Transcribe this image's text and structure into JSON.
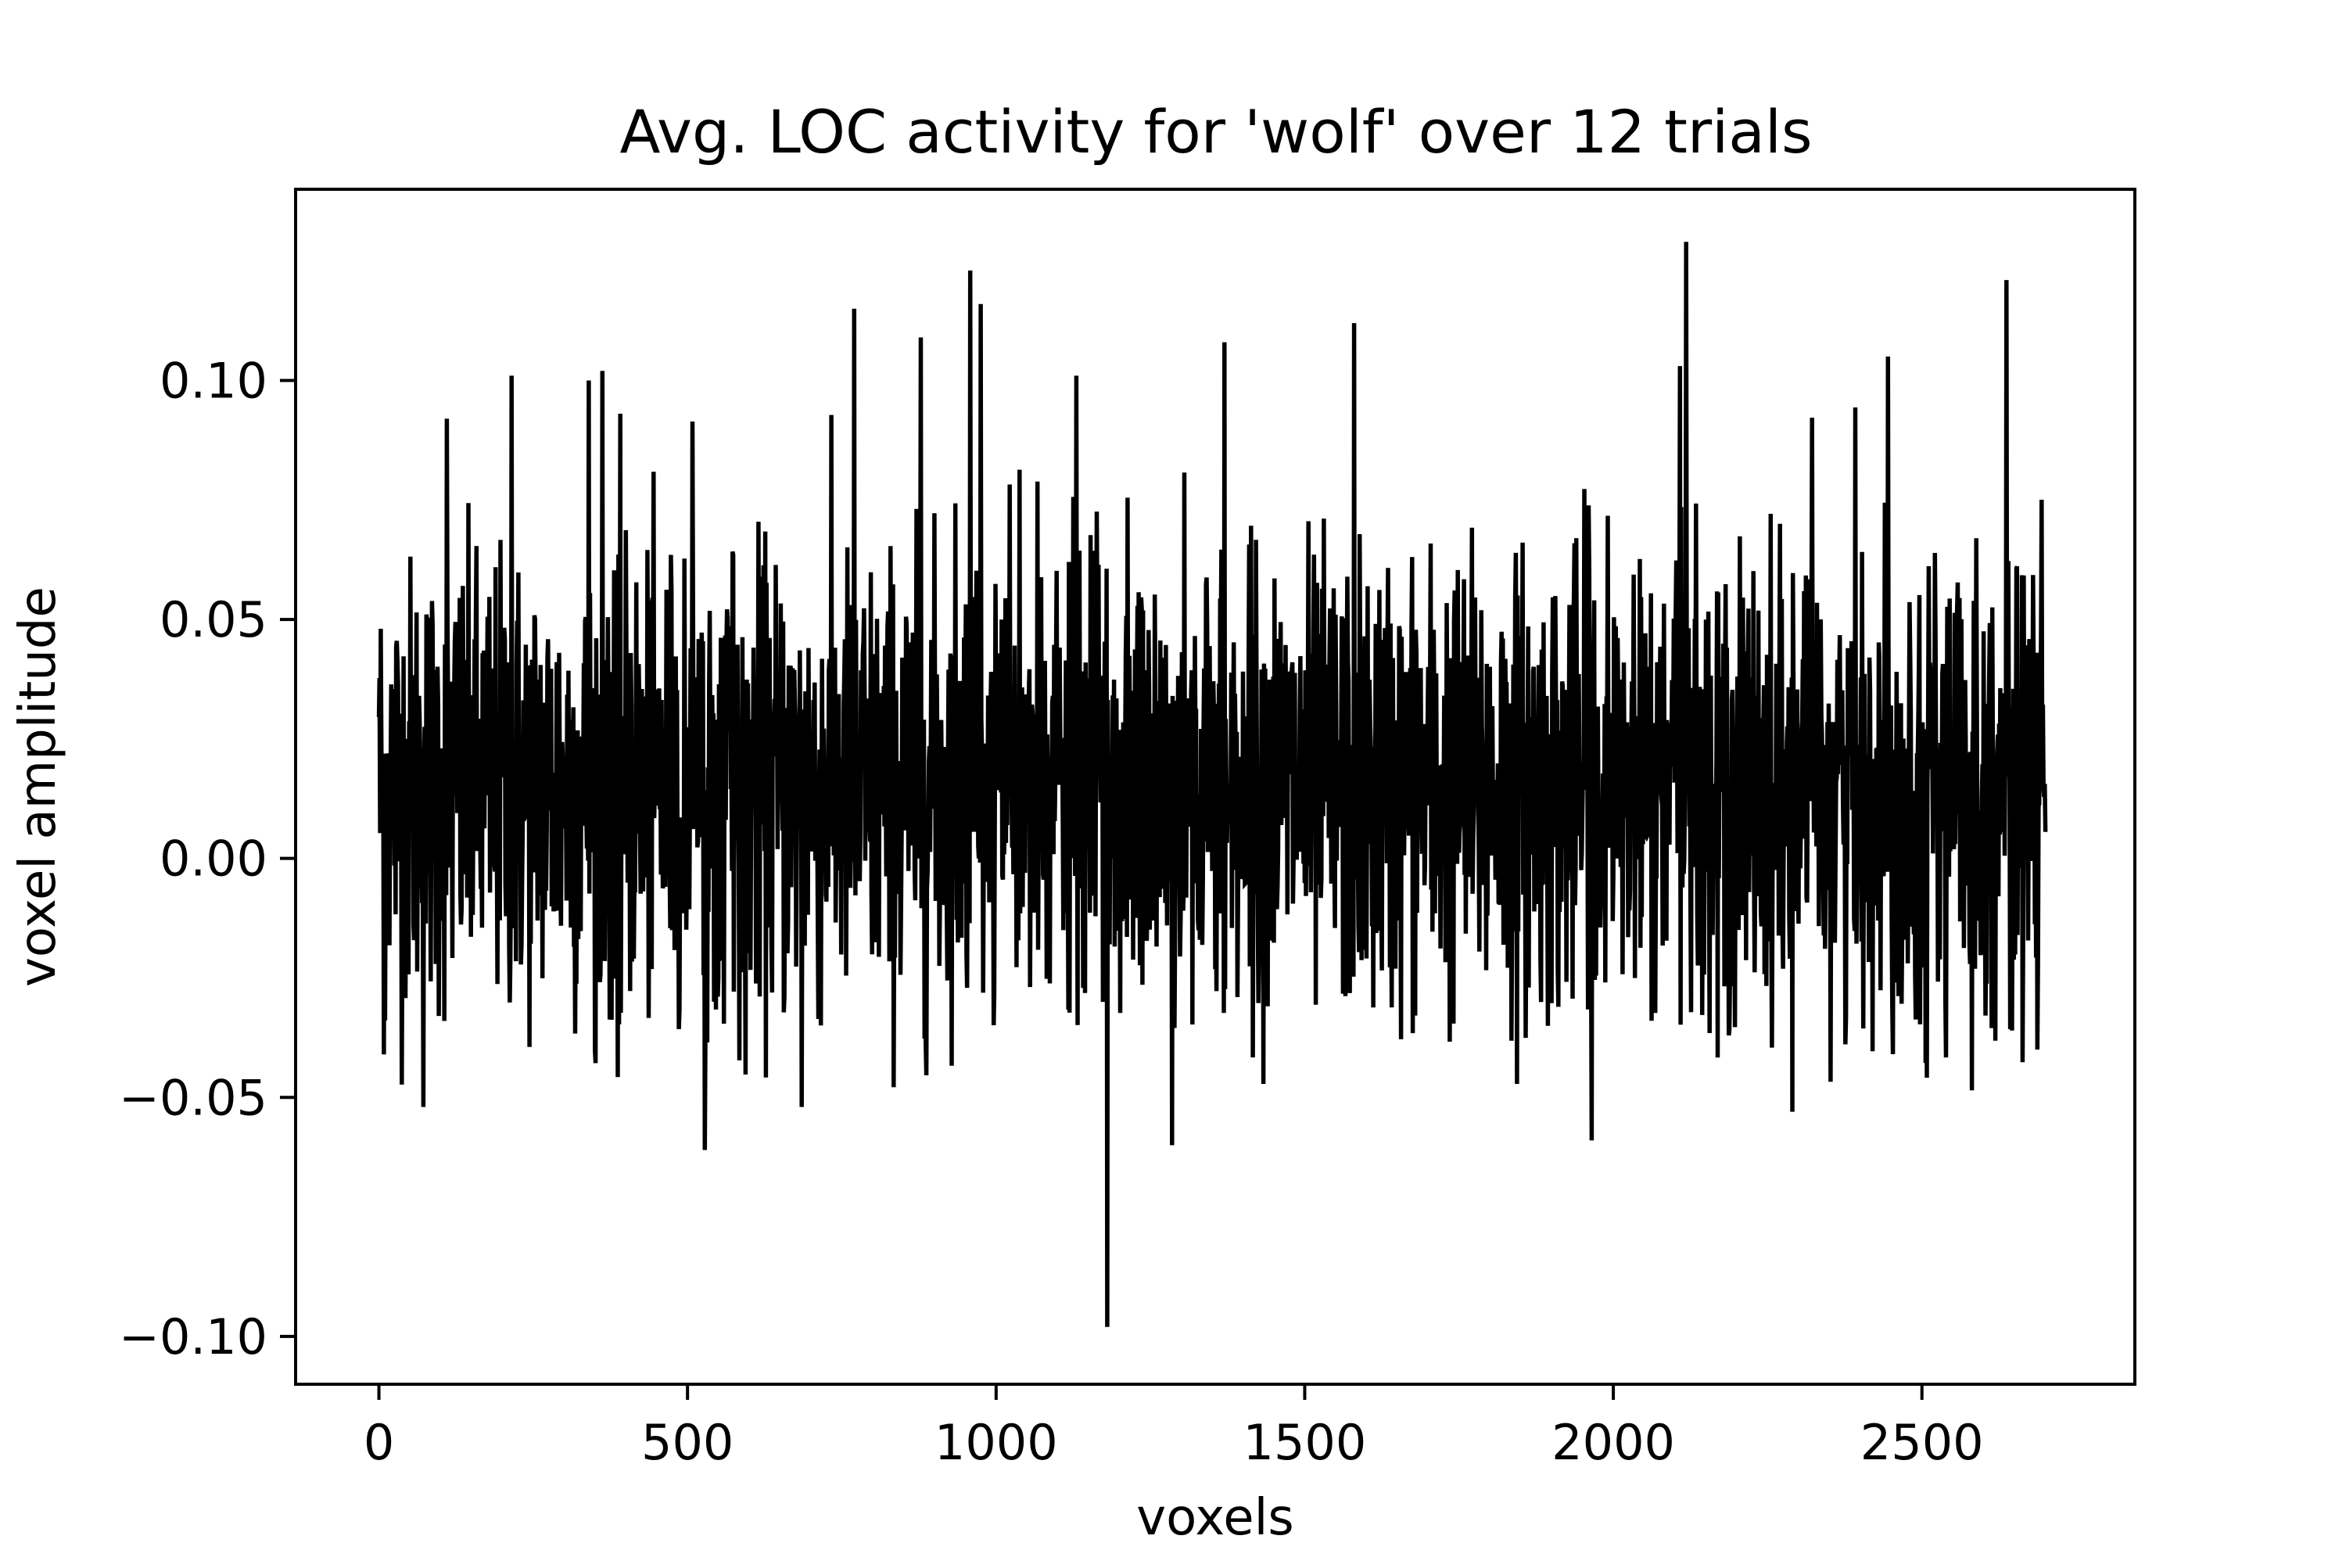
{
  "chart_data": {
    "type": "line",
    "title": "Avg. LOC activity for 'wolf' over 12 trials",
    "xlabel": "voxels",
    "ylabel": "voxel amplitude",
    "xlim": [
      -135,
      2845
    ],
    "ylim": [
      -0.11,
      0.14
    ],
    "xticks": [
      0,
      500,
      1000,
      1500,
      2000,
      2500
    ],
    "xtick_labels": [
      "0",
      "500",
      "1000",
      "1500",
      "2000",
      "2500"
    ],
    "yticks": [
      -0.1,
      -0.05,
      0.0,
      0.05,
      0.1
    ],
    "ytick_labels": [
      "−0.10",
      "−0.05",
      "0.00",
      "0.05",
      "0.10"
    ],
    "grid": false,
    "legend": "none",
    "series": [
      {
        "color": "#000000",
        "n_points": 2700,
        "mean": 0.015,
        "std": 0.025,
        "value_range": [
          -0.098,
          0.129
        ],
        "notable_points": [
          {
            "x": 0,
            "y": 0.03
          },
          {
            "x": 8,
            "y": -0.041
          },
          {
            "x": 72,
            "y": -0.052
          },
          {
            "x": 110,
            "y": 0.092
          },
          {
            "x": 215,
            "y": 0.101
          },
          {
            "x": 340,
            "y": 0.1
          },
          {
            "x": 362,
            "y": 0.102
          },
          {
            "x": 528,
            "y": -0.061
          },
          {
            "x": 685,
            "y": -0.052
          },
          {
            "x": 770,
            "y": 0.115
          },
          {
            "x": 878,
            "y": 0.109
          },
          {
            "x": 958,
            "y": 0.123
          },
          {
            "x": 975,
            "y": 0.116
          },
          {
            "x": 1130,
            "y": 0.101
          },
          {
            "x": 1180,
            "y": -0.098
          },
          {
            "x": 1285,
            "y": -0.06
          },
          {
            "x": 1370,
            "y": 0.108
          },
          {
            "x": 1580,
            "y": 0.112
          },
          {
            "x": 1965,
            "y": -0.059
          },
          {
            "x": 2118,
            "y": 0.129
          },
          {
            "x": 2108,
            "y": 0.103
          },
          {
            "x": 2290,
            "y": -0.053
          },
          {
            "x": 2445,
            "y": 0.105
          },
          {
            "x": 2637,
            "y": 0.121
          },
          {
            "x": 2700,
            "y": 0.006
          }
        ]
      }
    ]
  }
}
